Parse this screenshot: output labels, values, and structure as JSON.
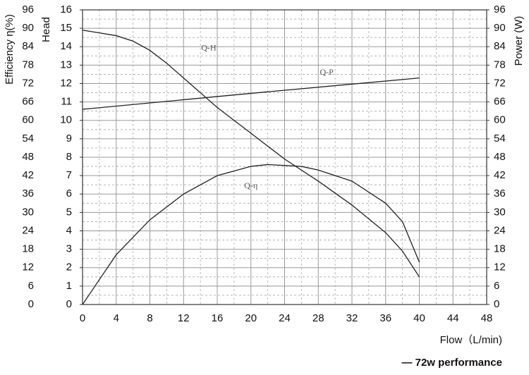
{
  "chart_data": {
    "type": "line",
    "x_label": "Flow（L/min)",
    "y_label": "Head",
    "y2_label": "Power (W)",
    "y3_label": "Efficiency η(%)",
    "caption": "— 72w performance",
    "xlim": [
      0,
      48
    ],
    "xticks": [
      0,
      4,
      8,
      12,
      16,
      20,
      24,
      28,
      32,
      36,
      40,
      44,
      48
    ],
    "ylim": [
      0,
      16
    ],
    "yticks": [
      0,
      1,
      2,
      3,
      4,
      5,
      6,
      7,
      8,
      9,
      10,
      11,
      12,
      13,
      14,
      15,
      16
    ],
    "y2lim": [
      0,
      96
    ],
    "y2ticks": [
      0,
      6,
      12,
      18,
      24,
      30,
      36,
      42,
      48,
      54,
      60,
      66,
      72,
      78,
      84,
      90,
      96
    ],
    "y3lim": [
      0,
      96
    ],
    "y3ticks": [
      0,
      6,
      12,
      18,
      24,
      30,
      36,
      42,
      48,
      54,
      60,
      66,
      72,
      78,
      84,
      90,
      96
    ],
    "grid": true,
    "series": [
      {
        "name": "Q-H",
        "color": "#222222",
        "axis": "y",
        "x": [
          0,
          4,
          6,
          8,
          10,
          12,
          14,
          16,
          20,
          24,
          28,
          32,
          36,
          38,
          40
        ],
        "values": [
          14.9,
          14.6,
          14.3,
          13.8,
          13.1,
          12.3,
          11.5,
          10.7,
          9.3,
          7.9,
          6.7,
          5.4,
          3.9,
          2.9,
          1.5
        ]
      },
      {
        "name": "Q-P",
        "color": "#222222",
        "axis": "y2",
        "x": [
          0,
          20,
          40
        ],
        "values": [
          63.6,
          68.8,
          73.8
        ]
      },
      {
        "name": "Q-η",
        "color": "#222222",
        "axis": "y3",
        "x": [
          0,
          4,
          8,
          12,
          16,
          20,
          22,
          26,
          28,
          32,
          36,
          38,
          40
        ],
        "values": [
          0,
          16.2,
          27.6,
          36,
          42,
          45,
          45.6,
          45,
          43.8,
          40.2,
          33,
          27,
          13.8
        ]
      }
    ]
  }
}
